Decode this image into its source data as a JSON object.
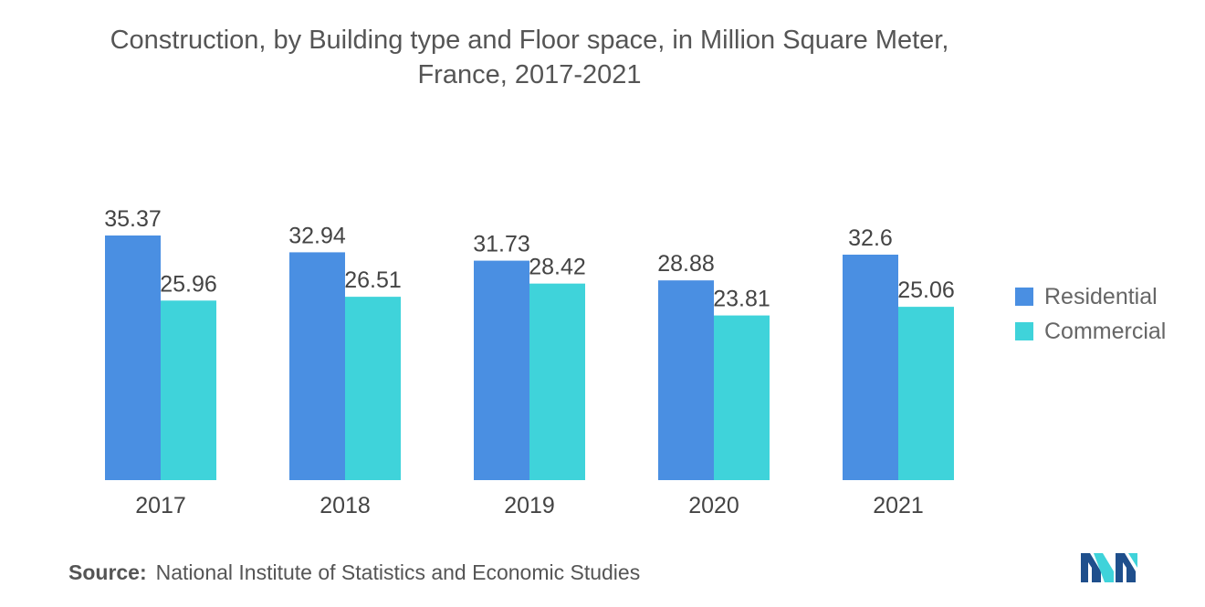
{
  "header": {
    "title_line1": "Construction, by Building type and Floor space, in Million Square Meter,",
    "title_line2": "France, 2017-2021"
  },
  "chart_data": {
    "type": "bar",
    "categories": [
      "2017",
      "2018",
      "2019",
      "2020",
      "2021"
    ],
    "series": [
      {
        "name": "Residential",
        "color": "#4a8fe2",
        "values": [
          35.37,
          32.94,
          31.73,
          28.88,
          32.6
        ]
      },
      {
        "name": "Commercial",
        "color": "#3fd3da",
        "values": [
          25.96,
          26.51,
          28.42,
          23.81,
          25.06
        ]
      }
    ],
    "value_labels": [
      [
        "35.37",
        "32.94",
        "31.73",
        "28.88",
        "32.6"
      ],
      [
        "25.96",
        "26.51",
        "28.42",
        "23.81",
        "25.06"
      ]
    ],
    "ylim": [
      0,
      35.37
    ],
    "grid": false,
    "legend_position": "right"
  },
  "legend": {
    "items": [
      {
        "label": "Residential",
        "color": "#4a8fe2"
      },
      {
        "label": "Commercial",
        "color": "#3fd3da"
      }
    ]
  },
  "footer": {
    "source_label": "Source:",
    "source_text": "National Institute of Statistics and Economic Studies"
  },
  "logo": {
    "icon": "mordor-intelligence-logo-icon",
    "colors": [
      "#1f4f8c",
      "#3fd3da"
    ]
  }
}
